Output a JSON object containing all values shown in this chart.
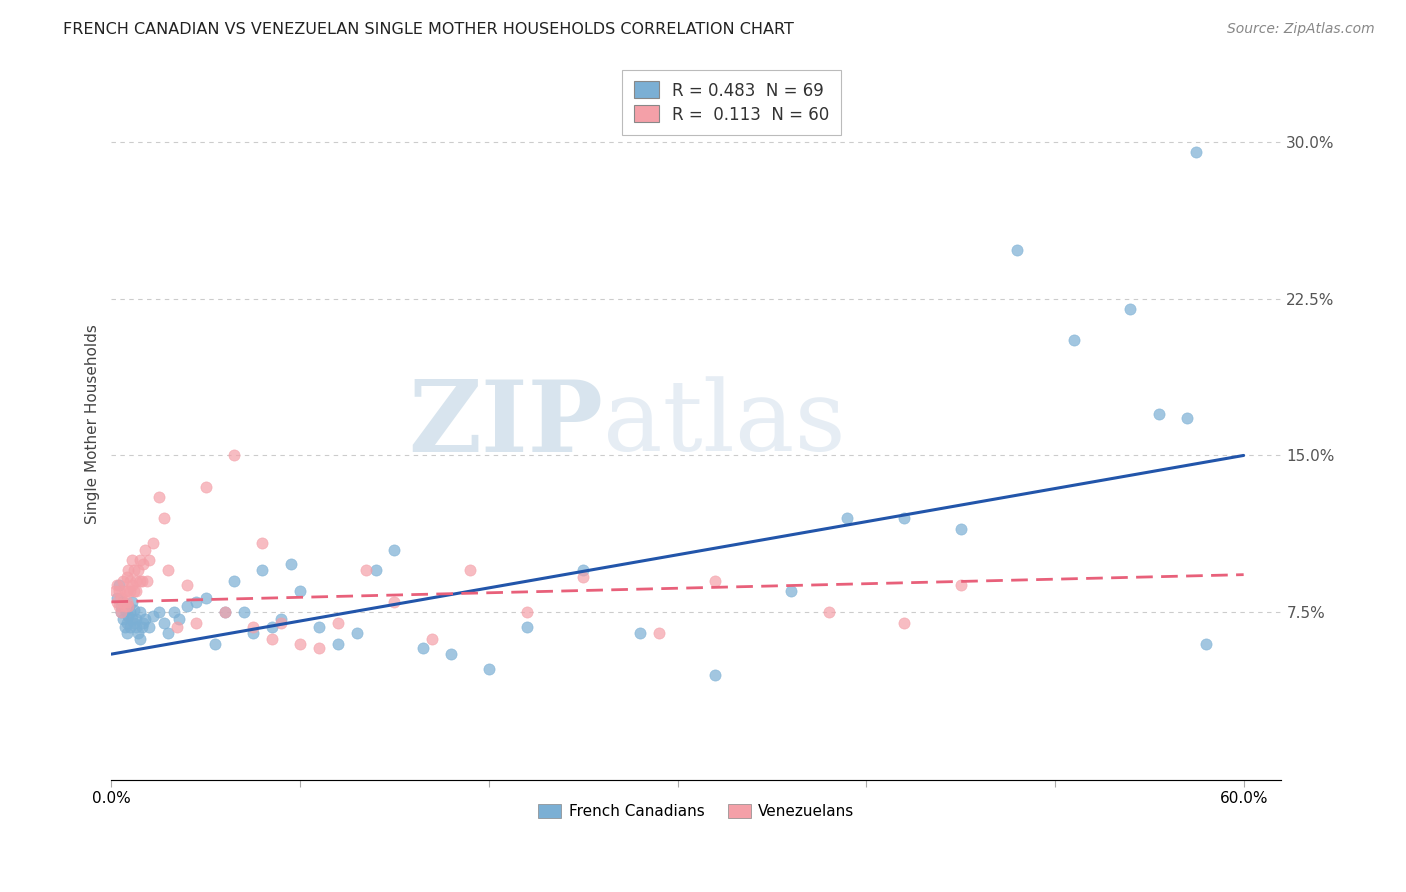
{
  "title": "FRENCH CANADIAN VS VENEZUELAN SINGLE MOTHER HOUSEHOLDS CORRELATION CHART",
  "source": "Source: ZipAtlas.com",
  "ylabel": "Single Mother Households",
  "xlim": [
    0.0,
    0.62
  ],
  "ylim": [
    -0.005,
    0.335
  ],
  "xticks": [
    0.0,
    0.1,
    0.2,
    0.3,
    0.4,
    0.5,
    0.6
  ],
  "xticklabels": [
    "0.0%",
    "",
    "",
    "",
    "",
    "",
    "60.0%"
  ],
  "yticks_right": [
    0.075,
    0.15,
    0.225,
    0.3
  ],
  "ytick_labels_right": [
    "7.5%",
    "15.0%",
    "22.5%",
    "30.0%"
  ],
  "legend_r1": "R = 0.483  N = 69",
  "legend_r2": "R =  0.113  N = 60",
  "blue_color": "#7BAFD4",
  "pink_color": "#F4A0A8",
  "blue_line_color": "#2255AA",
  "pink_line_color": "#E8607A",
  "watermark_zip": "ZIP",
  "watermark_atlas": "atlas",
  "french_canadians_x": [
    0.003,
    0.004,
    0.005,
    0.005,
    0.006,
    0.006,
    0.007,
    0.007,
    0.008,
    0.008,
    0.009,
    0.009,
    0.01,
    0.01,
    0.011,
    0.011,
    0.012,
    0.012,
    0.013,
    0.013,
    0.014,
    0.015,
    0.015,
    0.016,
    0.017,
    0.018,
    0.02,
    0.022,
    0.025,
    0.028,
    0.03,
    0.033,
    0.036,
    0.04,
    0.045,
    0.05,
    0.055,
    0.06,
    0.065,
    0.07,
    0.075,
    0.08,
    0.085,
    0.09,
    0.095,
    0.1,
    0.11,
    0.12,
    0.13,
    0.14,
    0.15,
    0.165,
    0.18,
    0.2,
    0.22,
    0.25,
    0.28,
    0.32,
    0.36,
    0.39,
    0.42,
    0.45,
    0.48,
    0.51,
    0.54,
    0.555,
    0.57,
    0.575,
    0.58
  ],
  "french_canadians_y": [
    0.082,
    0.088,
    0.075,
    0.078,
    0.08,
    0.072,
    0.068,
    0.076,
    0.065,
    0.07,
    0.078,
    0.073,
    0.068,
    0.075,
    0.072,
    0.08,
    0.07,
    0.076,
    0.068,
    0.072,
    0.065,
    0.075,
    0.062,
    0.068,
    0.07,
    0.072,
    0.068,
    0.073,
    0.075,
    0.07,
    0.065,
    0.075,
    0.072,
    0.078,
    0.08,
    0.082,
    0.06,
    0.075,
    0.09,
    0.075,
    0.065,
    0.095,
    0.068,
    0.072,
    0.098,
    0.085,
    0.068,
    0.06,
    0.065,
    0.095,
    0.105,
    0.058,
    0.055,
    0.048,
    0.068,
    0.095,
    0.065,
    0.045,
    0.085,
    0.12,
    0.12,
    0.115,
    0.248,
    0.205,
    0.22,
    0.17,
    0.168,
    0.295,
    0.06
  ],
  "venezuelans_x": [
    0.002,
    0.003,
    0.003,
    0.004,
    0.004,
    0.005,
    0.005,
    0.006,
    0.006,
    0.007,
    0.007,
    0.008,
    0.008,
    0.008,
    0.009,
    0.009,
    0.01,
    0.01,
    0.011,
    0.011,
    0.012,
    0.012,
    0.013,
    0.013,
    0.014,
    0.015,
    0.015,
    0.016,
    0.017,
    0.018,
    0.019,
    0.02,
    0.022,
    0.025,
    0.028,
    0.03,
    0.035,
    0.04,
    0.045,
    0.05,
    0.06,
    0.065,
    0.075,
    0.08,
    0.085,
    0.09,
    0.1,
    0.11,
    0.12,
    0.135,
    0.15,
    0.17,
    0.19,
    0.22,
    0.25,
    0.29,
    0.32,
    0.38,
    0.42,
    0.45
  ],
  "venezuelans_y": [
    0.085,
    0.08,
    0.088,
    0.078,
    0.085,
    0.075,
    0.082,
    0.08,
    0.09,
    0.078,
    0.085,
    0.085,
    0.092,
    0.08,
    0.078,
    0.095,
    0.085,
    0.09,
    0.088,
    0.1,
    0.095,
    0.085,
    0.09,
    0.085,
    0.095,
    0.1,
    0.09,
    0.09,
    0.098,
    0.105,
    0.09,
    0.1,
    0.108,
    0.13,
    0.12,
    0.095,
    0.068,
    0.088,
    0.07,
    0.135,
    0.075,
    0.15,
    0.068,
    0.108,
    0.062,
    0.07,
    0.06,
    0.058,
    0.07,
    0.095,
    0.08,
    0.062,
    0.095,
    0.075,
    0.092,
    0.065,
    0.09,
    0.075,
    0.07,
    0.088
  ],
  "blue_regression": [
    0.055,
    0.15
  ],
  "pink_regression": [
    0.08,
    0.093
  ],
  "title_fontsize": 11.5,
  "source_fontsize": 10,
  "tick_fontsize": 11,
  "ylabel_fontsize": 11
}
